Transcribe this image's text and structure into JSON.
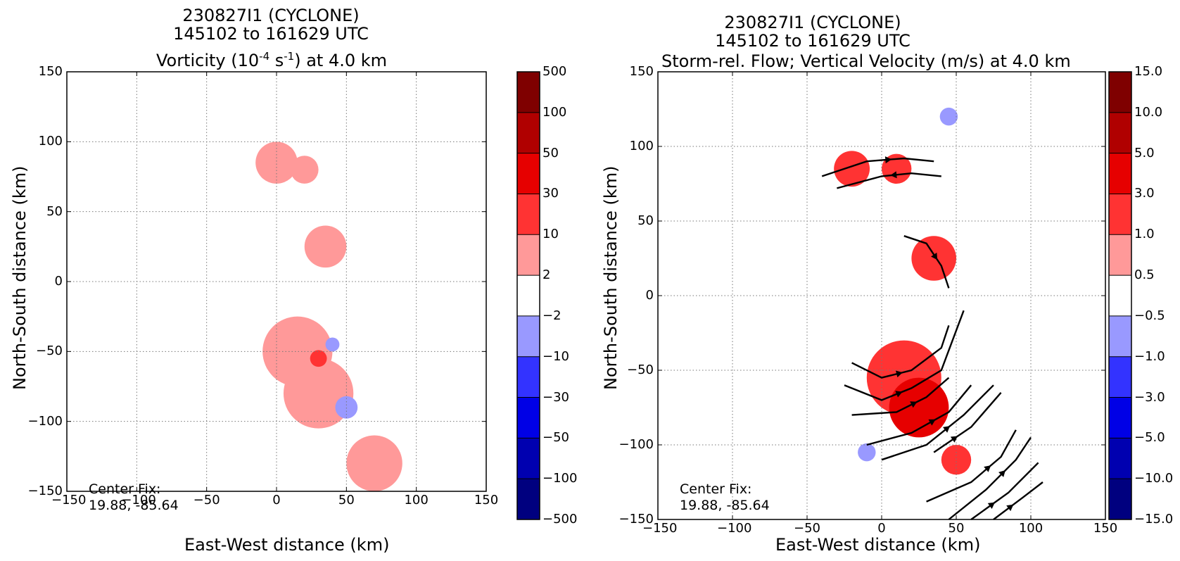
{
  "panels": [
    {
      "title1": "230827I1 (CYCLONE)",
      "title2": "145102 to 161629 UTC",
      "title3_pre": "Vorticity (10",
      "title3_sup1": "-4",
      "title3_mid": " s",
      "title3_sup2": "-1",
      "title3_post": ") at 4.0 km",
      "xlabel": "East-West distance (km)",
      "ylabel": "North-South distance (km)",
      "center_fix": "Center Fix:\n19.88, -85.64",
      "colorbar_labels": [
        "500",
        "100",
        "50",
        "30",
        "10",
        "2",
        "−2",
        "−10",
        "−30",
        "−50",
        "−100",
        "−500"
      ]
    },
    {
      "title1": "230827I1 (CYCLONE)",
      "title2": "145102 to 161629 UTC",
      "title3": "Storm-rel. Flow; Vertical Velocity (m/s) at 4.0 km",
      "xlabel": "East-West distance (km)",
      "ylabel": "North-South distance (km)",
      "center_fix": "Center Fix:\n19.88, -85.64",
      "colorbar_labels": [
        "15.0",
        "10.0",
        "5.0",
        "3.0",
        "1.0",
        "0.5",
        "−0.5",
        "−1.0",
        "−3.0",
        "−5.0",
        "−10.0",
        "−15.0"
      ]
    }
  ],
  "axis_ticks": {
    "x": [
      "−150",
      "−100",
      "−50",
      "0",
      "50",
      "100",
      "150"
    ],
    "y": [
      "150",
      "100",
      "50",
      "0",
      "−50",
      "−100",
      "−150"
    ]
  },
  "colors": {
    "colorbar": [
      "#7f0000",
      "#b00000",
      "#e60000",
      "#ff3333",
      "#ff9999",
      "#ffffff",
      "#9999ff",
      "#3333ff",
      "#0000e6",
      "#0000b0",
      "#00007f"
    ]
  },
  "chart_data": [
    {
      "type": "heatmap",
      "title": "230827I1 (CYCLONE) 145102 to 161629 UTC Vorticity (10^-4 s^-1) at 4.0 km",
      "xlabel": "East-West distance (km)",
      "ylabel": "North-South distance (km)",
      "xlim": [
        -150,
        150
      ],
      "ylim": [
        -150,
        150
      ],
      "grid": true,
      "colorbar_levels": [
        -500,
        -100,
        -50,
        -30,
        -10,
        -2,
        2,
        10,
        30,
        50,
        100,
        500
      ],
      "regions": [
        {
          "x": 0,
          "y": 85,
          "r": 15,
          "level": 2
        },
        {
          "x": 20,
          "y": 80,
          "r": 10,
          "level": 2
        },
        {
          "x": 35,
          "y": 25,
          "r": 15,
          "level": 2
        },
        {
          "x": 15,
          "y": -50,
          "r": 25,
          "level": 2
        },
        {
          "x": 30,
          "y": -80,
          "r": 25,
          "level": 2
        },
        {
          "x": 70,
          "y": -130,
          "r": 20,
          "level": 2
        },
        {
          "x": 30,
          "y": -55,
          "r": 6,
          "level": 10
        },
        {
          "x": 40,
          "y": -45,
          "r": 5,
          "level": -10
        },
        {
          "x": 50,
          "y": -90,
          "r": 8,
          "level": -10
        }
      ]
    },
    {
      "type": "heatmap",
      "title": "230827I1 (CYCLONE) 145102 to 161629 UTC Storm-rel. Flow; Vertical Velocity (m/s) at 4.0 km",
      "xlabel": "East-West distance (km)",
      "ylabel": "North-South distance (km)",
      "xlim": [
        -150,
        150
      ],
      "ylim": [
        -150,
        150
      ],
      "grid": true,
      "colorbar_levels": [
        -15.0,
        -10.0,
        -5.0,
        -3.0,
        -1.0,
        -0.5,
        0.5,
        1.0,
        3.0,
        5.0,
        10.0,
        15.0
      ],
      "regions": [
        {
          "x": -20,
          "y": 85,
          "r": 12,
          "level": 1.0
        },
        {
          "x": 10,
          "y": 85,
          "r": 10,
          "level": 1.0
        },
        {
          "x": 35,
          "y": 25,
          "r": 15,
          "level": 1.0
        },
        {
          "x": 15,
          "y": -55,
          "r": 25,
          "level": 1.0
        },
        {
          "x": 25,
          "y": -75,
          "r": 20,
          "level": 3.0
        },
        {
          "x": 50,
          "y": -110,
          "r": 10,
          "level": 1.0
        },
        {
          "x": 45,
          "y": 120,
          "r": 6,
          "level": -1.0
        },
        {
          "x": -10,
          "y": -105,
          "r": 6,
          "level": -1.0
        }
      ],
      "streamlines": [
        [
          [
            -40,
            80
          ],
          [
            -10,
            90
          ],
          [
            15,
            92
          ],
          [
            35,
            90
          ]
        ],
        [
          [
            40,
            80
          ],
          [
            20,
            82
          ],
          [
            0,
            80
          ],
          [
            -30,
            72
          ]
        ],
        [
          [
            15,
            40
          ],
          [
            30,
            35
          ],
          [
            40,
            20
          ],
          [
            45,
            5
          ]
        ],
        [
          [
            -20,
            -45
          ],
          [
            0,
            -55
          ],
          [
            20,
            -50
          ],
          [
            40,
            -35
          ],
          [
            45,
            -20
          ]
        ],
        [
          [
            -25,
            -60
          ],
          [
            0,
            -70
          ],
          [
            20,
            -62
          ],
          [
            40,
            -50
          ],
          [
            55,
            -10
          ]
        ],
        [
          [
            -20,
            -80
          ],
          [
            10,
            -78
          ],
          [
            30,
            -68
          ],
          [
            45,
            -55
          ]
        ],
        [
          [
            -10,
            -100
          ],
          [
            20,
            -92
          ],
          [
            45,
            -78
          ],
          [
            60,
            -60
          ]
        ],
        [
          [
            0,
            -110
          ],
          [
            30,
            -100
          ],
          [
            55,
            -80
          ],
          [
            75,
            -60
          ]
        ],
        [
          [
            35,
            -105
          ],
          [
            60,
            -88
          ],
          [
            80,
            -65
          ]
        ],
        [
          [
            30,
            -138
          ],
          [
            60,
            -125
          ],
          [
            80,
            -108
          ],
          [
            90,
            -90
          ]
        ],
        [
          [
            45,
            -150
          ],
          [
            70,
            -130
          ],
          [
            90,
            -110
          ],
          [
            100,
            -95
          ]
        ],
        [
          [
            60,
            -150
          ],
          [
            85,
            -132
          ],
          [
            105,
            -112
          ]
        ],
        [
          [
            75,
            -150
          ],
          [
            95,
            -135
          ],
          [
            108,
            -125
          ]
        ]
      ]
    }
  ]
}
